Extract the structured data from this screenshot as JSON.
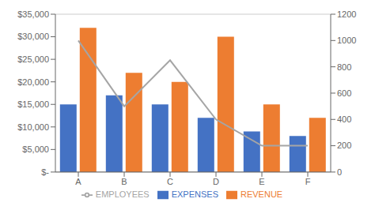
{
  "chart_data": {
    "type": "bar",
    "categories": [
      "A",
      "B",
      "C",
      "D",
      "E",
      "F"
    ],
    "series": [
      {
        "name": "EXPENSES",
        "color": "#4472C4",
        "values": [
          15000,
          17000,
          15000,
          12000,
          9000,
          8000
        ]
      },
      {
        "name": "REVENUE",
        "color": "#ED7D31",
        "values": [
          32000,
          22000,
          20000,
          30000,
          15000,
          12000
        ]
      },
      {
        "name": "EMPLOYEES",
        "color": "#A5A5A5",
        "type": "line",
        "axis": "y2",
        "values": [
          1000,
          500,
          850,
          400,
          200,
          200
        ]
      }
    ],
    "ylim": [
      0,
      35000
    ],
    "yticks": [
      {
        "value": 0,
        "label": "$-"
      },
      {
        "value": 5000,
        "label": "$5,000"
      },
      {
        "value": 10000,
        "label": "$10,000"
      },
      {
        "value": 15000,
        "label": "$15,000"
      },
      {
        "value": 20000,
        "label": "$20,000"
      },
      {
        "value": 25000,
        "label": "$25,000"
      },
      {
        "value": 30000,
        "label": "$30,000"
      },
      {
        "value": 35000,
        "label": "$35,000"
      }
    ],
    "y2lim": [
      0,
      1200
    ],
    "y2ticks": [
      0,
      200,
      400,
      600,
      800,
      1000,
      1200
    ],
    "grid": true,
    "legend": "bottom"
  }
}
